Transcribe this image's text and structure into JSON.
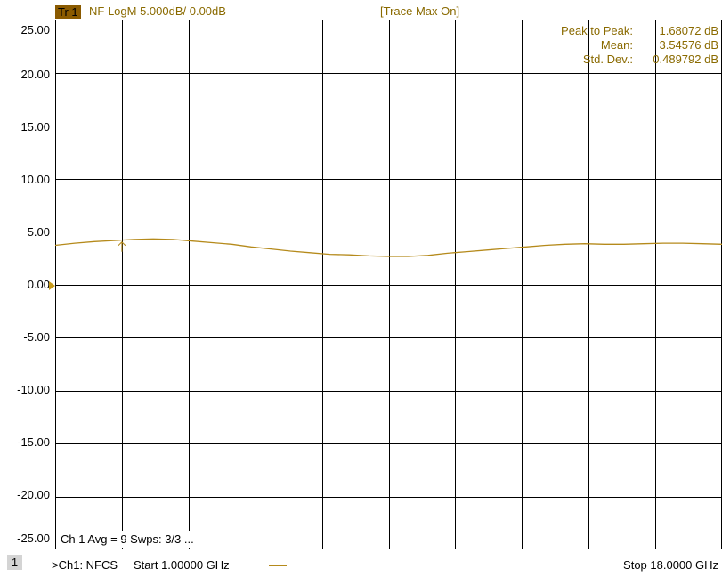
{
  "header": {
    "trace_badge": "Tr 1",
    "trace_info": "NF LogM 5.000dB/  0.00dB",
    "trace_max": "[Trace Max On]"
  },
  "stats": {
    "labels": [
      "Peak to Peak:",
      "Mean:",
      "Std. Dev.:"
    ],
    "values": [
      "1.68072 dB",
      "3.54576 dB",
      "0.489792 dB"
    ]
  },
  "avg_text": "Ch 1 Avg =     9 Swps: 3/3 ...",
  "footer": {
    "channel_badge": "1",
    "channel_text": ">Ch1: NFCS",
    "start": "Start  1.00000 GHz",
    "stop": "Stop  18.0000 GHz"
  },
  "colors": {
    "trace": "#b58a1b",
    "grid": "#000000",
    "text_accent": "#8a6a00"
  },
  "chart_data": {
    "type": "line",
    "y_tick_labels": [
      "25.00",
      "20.00",
      "15.00",
      "10.00",
      "5.00",
      "0.00",
      "-5.00",
      "-10.00",
      "-15.00",
      "-20.00",
      "-25.00"
    ],
    "ylim": [
      -25,
      25
    ],
    "xlim": [
      1.0,
      18.0
    ],
    "x_unit": "GHz",
    "y_unit": "dB",
    "grid": true,
    "reference_level": 0.0,
    "series": [
      {
        "x": [
          1.0,
          1.5,
          2.0,
          2.5,
          3.0,
          3.5,
          4.0,
          4.5,
          5.0,
          5.5,
          6.0,
          6.5,
          7.0,
          7.5,
          8.0,
          8.5,
          9.0,
          9.5,
          10.0,
          10.5,
          11.0,
          11.5,
          12.0,
          12.5,
          13.0,
          13.5,
          14.0,
          14.5,
          15.0,
          15.5,
          16.0,
          16.5,
          17.0,
          17.5,
          18.0
        ],
        "y": [
          3.7,
          3.9,
          4.05,
          4.15,
          4.25,
          4.3,
          4.25,
          4.1,
          3.95,
          3.8,
          3.55,
          3.35,
          3.15,
          3.0,
          2.85,
          2.8,
          2.7,
          2.65,
          2.65,
          2.75,
          2.95,
          3.1,
          3.25,
          3.4,
          3.55,
          3.7,
          3.8,
          3.85,
          3.8,
          3.8,
          3.85,
          3.9,
          3.9,
          3.85,
          3.8
        ]
      }
    ],
    "marker": {
      "x": 2.7,
      "y": 4.1
    }
  }
}
